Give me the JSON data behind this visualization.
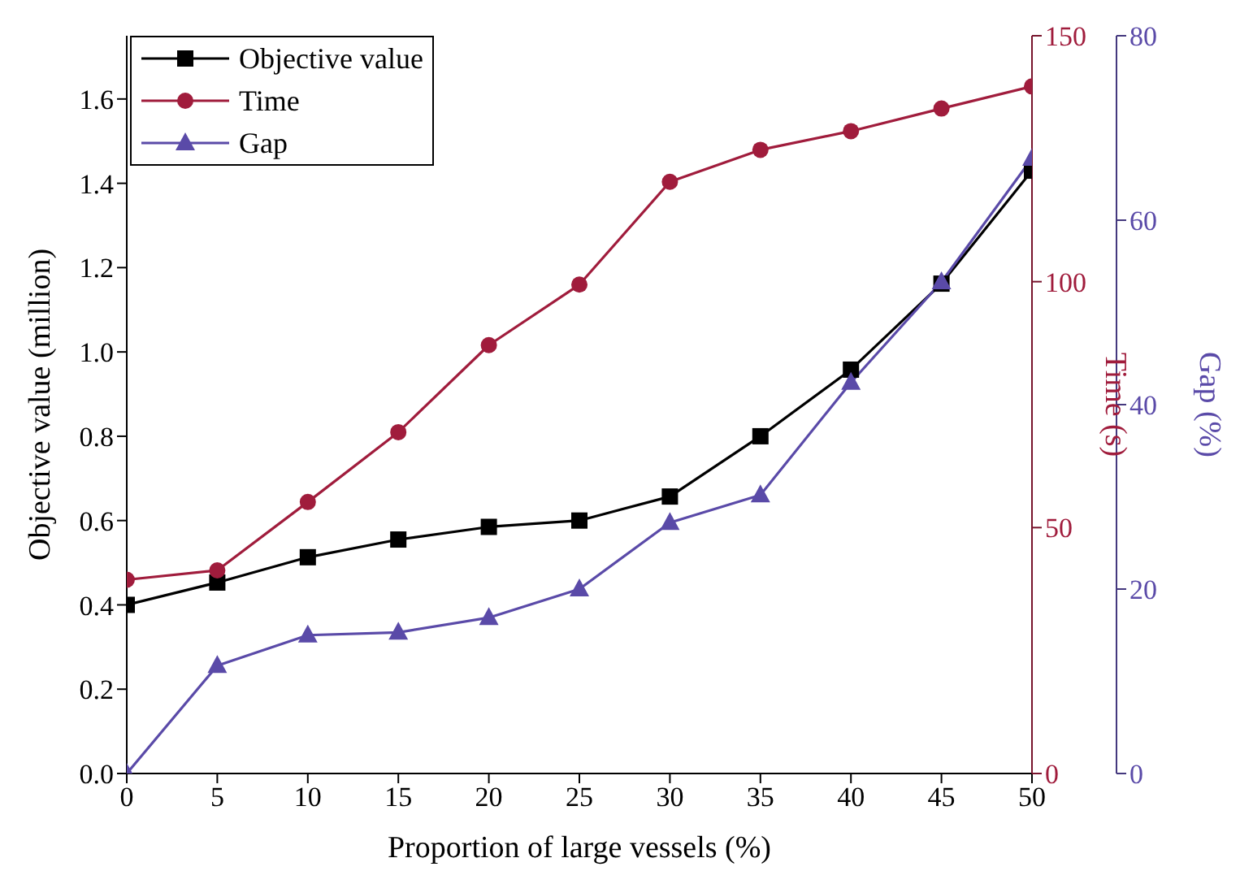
{
  "chart_data": {
    "type": "line",
    "xlabel": "Proportion of large vessels (%)",
    "ylabel": "Objective value (million)",
    "y2label": "Time (s)",
    "y3label": "Gap (%)",
    "x": [
      0,
      5,
      10,
      15,
      20,
      25,
      30,
      35,
      40,
      45,
      50
    ],
    "xlim": [
      0,
      50
    ],
    "xticks": [
      0,
      5,
      10,
      15,
      20,
      25,
      30,
      35,
      40,
      45,
      50
    ],
    "ylim": [
      0,
      1.75
    ],
    "yticks": [
      {
        "value": 0,
        "label": "0.0"
      },
      {
        "value": 0.2,
        "label": "0.2"
      },
      {
        "value": 0.4,
        "label": "0.4"
      },
      {
        "value": 0.6,
        "label": "0.6"
      },
      {
        "value": 0.8,
        "label": "0.8"
      },
      {
        "value": 1,
        "label": "1.0"
      },
      {
        "value": 1.2,
        "label": "1.2"
      },
      {
        "value": 1.4,
        "label": "1.4"
      },
      {
        "value": 1.6,
        "label": "1.6"
      }
    ],
    "y2lim": [
      0,
      150
    ],
    "y2ticks": [
      0,
      50,
      100,
      150
    ],
    "y3lim": [
      0,
      80
    ],
    "y3ticks": [
      0,
      20,
      40,
      60,
      80
    ],
    "grid": false,
    "legend": "top left",
    "line_style": "solid",
    "series": [
      {
        "name": "Objective value",
        "color": "#000000",
        "marker": "square",
        "values": [
          0.4,
          0.453,
          0.513,
          0.555,
          0.585,
          0.6,
          0.657,
          0.8,
          0.958,
          1.162,
          1.43
        ]
      },
      {
        "name": "Time",
        "color": "#a01c3c",
        "marker": "circle",
        "axis": "y2",
        "values": [
          39.4,
          41.3,
          55.2,
          69.4,
          87.1,
          99.4,
          120.3,
          126.8,
          130.6,
          135.2,
          139.7
        ]
      },
      {
        "name": "Gap",
        "color": "#5a4aa8",
        "marker": "triangle",
        "axis": "y3",
        "values": [
          0,
          11.7,
          15,
          15.3,
          16.9,
          20,
          27.2,
          30.2,
          42.4,
          53.3,
          66.7
        ]
      }
    ]
  }
}
